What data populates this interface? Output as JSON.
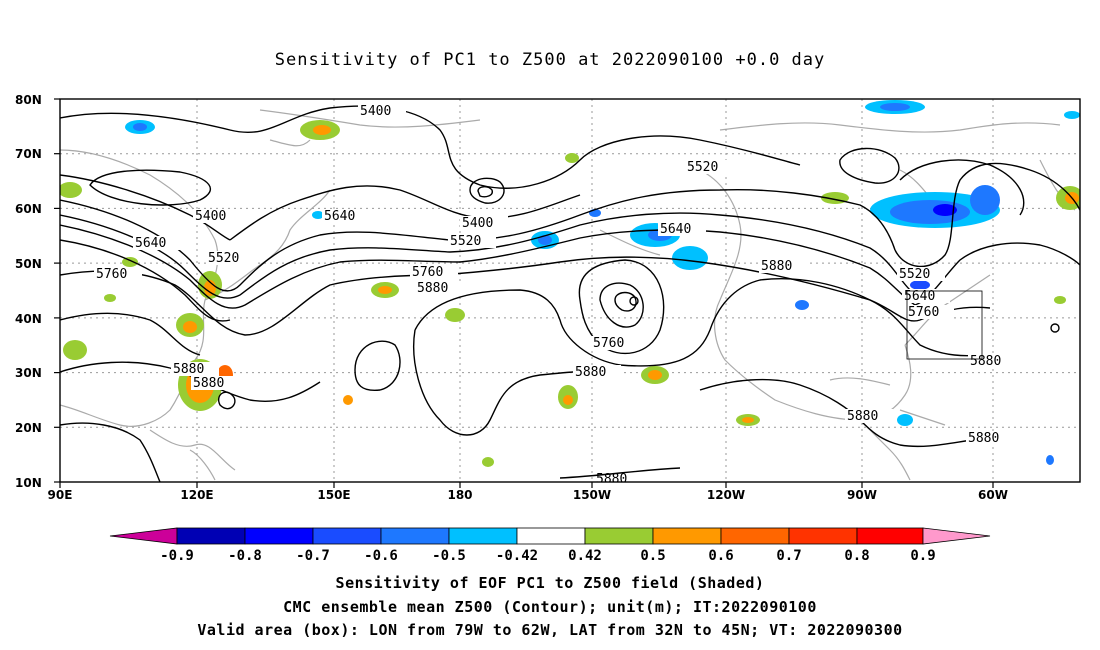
{
  "title": "Sensitivity of PC1 to Z500 at 2022090100 +0.0 day",
  "axes": {
    "lat_labels": [
      "80N",
      "70N",
      "60N",
      "50N",
      "40N",
      "30N",
      "20N",
      "10N"
    ],
    "lon_labels": [
      "90E",
      "120E",
      "150E",
      "180",
      "150W",
      "120W",
      "90W",
      "60W"
    ]
  },
  "contour_labels": [
    "5400",
    "5400",
    "5400",
    "5520",
    "5520",
    "5520",
    "5520",
    "5640",
    "5640",
    "5640",
    "5640",
    "5760",
    "5760",
    "5760",
    "5760",
    "5880",
    "5880",
    "5880",
    "5880",
    "5880",
    "5880",
    "5880",
    "5880"
  ],
  "colorbar": {
    "labels": [
      "-0.9",
      "-0.8",
      "-0.7",
      "-0.6",
      "-0.5",
      "-0.42",
      "0.42",
      "0.5",
      "0.6",
      "0.7",
      "0.8",
      "0.9"
    ],
    "colors": [
      "#cc0099",
      "#0000b4",
      "#0000ff",
      "#1a4cff",
      "#1e78ff",
      "#00c0ff",
      "#ffffff",
      "#99cc33",
      "#ff9900",
      "#ff6600",
      "#ff3300",
      "#ff0000",
      "#ff99cc"
    ]
  },
  "captions": {
    "line1": "Sensitivity of EOF PC1 to Z500 field (Shaded)",
    "line2": "CMC ensemble mean Z500 (Contour); unit(m); IT:2022090100",
    "line3": "Valid area (box): LON from 79W to 62W, LAT from 32N to 45N; VT: 2022090300"
  },
  "colors": {
    "contour": "#000000",
    "coast": "#aaaaaa",
    "grid": "#999999",
    "positive_light": "#99cc33",
    "positive_mid": "#ff9900",
    "negative_light": "#00c0ff",
    "negative_mid": "#1e78ff"
  }
}
